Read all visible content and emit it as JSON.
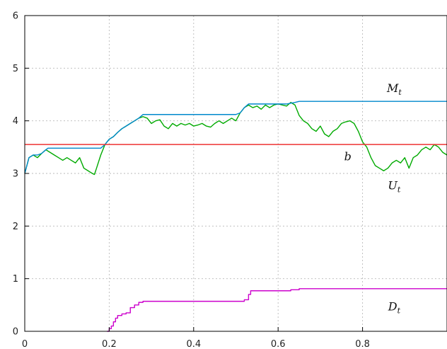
{
  "chart_data": {
    "type": "line",
    "title": "",
    "xlabel": "",
    "ylabel": "",
    "xlim": [
      0,
      1
    ],
    "ylim": [
      0,
      6
    ],
    "grid": true,
    "x_ticks": [
      0,
      0.2,
      0.4,
      0.6,
      0.8
    ],
    "x_tick_labels": [
      "0",
      "0.2",
      "0.4",
      "0.6",
      "0.8"
    ],
    "y_ticks": [
      0,
      1,
      2,
      3,
      4,
      5,
      6
    ],
    "y_tick_labels": [
      "0",
      "1",
      "2",
      "3",
      "4",
      "5",
      "6"
    ],
    "series": [
      {
        "name": "U",
        "label_main": "U",
        "label_sub": "t",
        "label_at": [
          0.875,
          2.7
        ],
        "color": "#00aa00",
        "interpolation": "linear",
        "x": [
          0,
          0.01,
          0.02,
          0.03,
          0.04,
          0.05,
          0.06,
          0.07,
          0.08,
          0.09,
          0.1,
          0.11,
          0.12,
          0.13,
          0.14,
          0.15,
          0.16,
          0.165,
          0.17,
          0.18,
          0.19,
          0.2,
          0.21,
          0.22,
          0.23,
          0.24,
          0.25,
          0.26,
          0.27,
          0.28,
          0.29,
          0.3,
          0.31,
          0.32,
          0.33,
          0.34,
          0.35,
          0.36,
          0.37,
          0.38,
          0.39,
          0.4,
          0.41,
          0.42,
          0.43,
          0.44,
          0.45,
          0.46,
          0.47,
          0.48,
          0.49,
          0.5,
          0.51,
          0.52,
          0.53,
          0.54,
          0.55,
          0.56,
          0.57,
          0.58,
          0.59,
          0.6,
          0.61,
          0.62,
          0.63,
          0.64,
          0.65,
          0.66,
          0.67,
          0.68,
          0.69,
          0.7,
          0.71,
          0.72,
          0.73,
          0.74,
          0.75,
          0.76,
          0.77,
          0.78,
          0.79,
          0.8,
          0.81,
          0.82,
          0.83,
          0.84,
          0.85,
          0.86,
          0.87,
          0.88,
          0.89,
          0.9,
          0.91,
          0.92,
          0.93,
          0.94,
          0.95,
          0.96,
          0.97,
          0.98,
          0.99,
          1.0
        ],
        "y": [
          3.0,
          3.3,
          3.35,
          3.3,
          3.38,
          3.45,
          3.4,
          3.35,
          3.3,
          3.25,
          3.3,
          3.25,
          3.2,
          3.3,
          3.1,
          3.05,
          3.0,
          2.98,
          3.1,
          3.35,
          3.55,
          3.65,
          3.7,
          3.78,
          3.85,
          3.9,
          3.95,
          4.0,
          4.05,
          4.08,
          4.05,
          3.95,
          4.0,
          4.02,
          3.9,
          3.85,
          3.95,
          3.9,
          3.95,
          3.92,
          3.95,
          3.9,
          3.92,
          3.95,
          3.9,
          3.88,
          3.95,
          4.0,
          3.95,
          4.0,
          4.05,
          4.0,
          4.15,
          4.25,
          4.3,
          4.25,
          4.28,
          4.22,
          4.3,
          4.25,
          4.3,
          4.32,
          4.3,
          4.28,
          4.35,
          4.3,
          4.1,
          4.0,
          3.95,
          3.85,
          3.8,
          3.9,
          3.75,
          3.7,
          3.8,
          3.85,
          3.95,
          3.98,
          4.0,
          3.95,
          3.8,
          3.6,
          3.5,
          3.3,
          3.15,
          3.1,
          3.05,
          3.1,
          3.2,
          3.25,
          3.2,
          3.3,
          3.1,
          3.3,
          3.35,
          3.45,
          3.5,
          3.45,
          3.55,
          3.5,
          3.4,
          3.35
        ]
      },
      {
        "name": "M",
        "label_main": "M",
        "label_sub": "t",
        "label_at": [
          0.875,
          4.55
        ],
        "color": "#0088cc",
        "interpolation": "linear",
        "x": [
          0,
          0.01,
          0.02,
          0.03,
          0.04,
          0.05,
          0.055,
          0.09,
          0.12,
          0.15,
          0.18,
          0.19,
          0.2,
          0.21,
          0.22,
          0.23,
          0.24,
          0.25,
          0.26,
          0.27,
          0.28,
          0.3,
          0.4,
          0.5,
          0.51,
          0.52,
          0.53,
          0.6,
          0.62,
          0.64,
          0.65,
          0.7,
          0.8,
          0.9,
          1.0
        ],
        "y": [
          3.0,
          3.3,
          3.35,
          3.35,
          3.38,
          3.45,
          3.48,
          3.48,
          3.48,
          3.48,
          3.48,
          3.55,
          3.65,
          3.7,
          3.78,
          3.85,
          3.9,
          3.95,
          4.0,
          4.05,
          4.12,
          4.12,
          4.12,
          4.12,
          4.15,
          4.25,
          4.32,
          4.32,
          4.32,
          4.35,
          4.37,
          4.37,
          4.37,
          4.37,
          4.37
        ]
      },
      {
        "name": "b",
        "label_main": "b",
        "label_sub": "",
        "label_at": [
          0.765,
          3.25
        ],
        "color": "#ee3333",
        "interpolation": "linear",
        "x": [
          0,
          1.0
        ],
        "y": [
          3.55,
          3.55
        ]
      },
      {
        "name": "D",
        "label_main": "D",
        "label_sub": "t",
        "label_at": [
          0.875,
          0.4
        ],
        "color": "#cc00cc",
        "interpolation": "step",
        "x": [
          0.195,
          0.2,
          0.205,
          0.21,
          0.215,
          0.22,
          0.23,
          0.24,
          0.25,
          0.26,
          0.27,
          0.28,
          0.29,
          0.4,
          0.5,
          0.52,
          0.53,
          0.535,
          0.6,
          0.63,
          0.65,
          0.7,
          0.8,
          0.9,
          1.0
        ],
        "y": [
          0.0,
          0.05,
          0.1,
          0.18,
          0.25,
          0.3,
          0.33,
          0.35,
          0.45,
          0.5,
          0.55,
          0.57,
          0.57,
          0.57,
          0.57,
          0.6,
          0.7,
          0.77,
          0.77,
          0.79,
          0.81,
          0.81,
          0.81,
          0.81,
          0.81
        ]
      }
    ]
  }
}
